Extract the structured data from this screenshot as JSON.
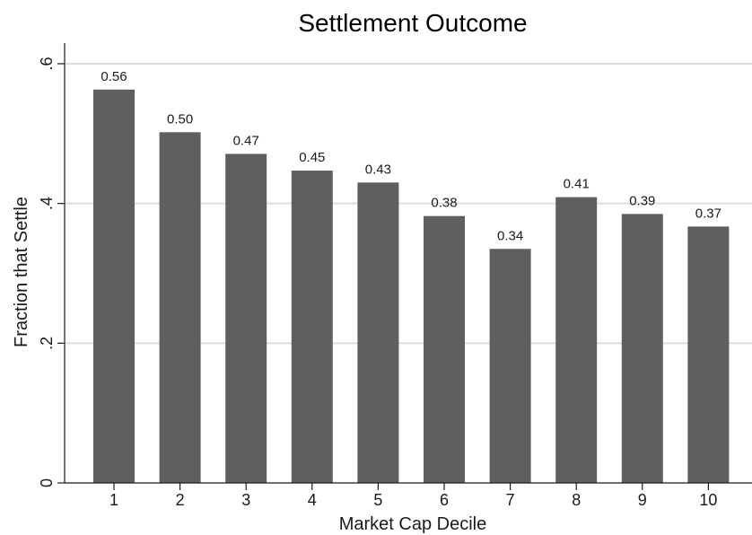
{
  "chart_data": {
    "type": "bar",
    "title": "Settlement Outcome",
    "xlabel": "Market Cap Decile",
    "ylabel": "Fraction that Settle",
    "categories": [
      "1",
      "2",
      "3",
      "4",
      "5",
      "6",
      "7",
      "8",
      "9",
      "10"
    ],
    "values": [
      0.563,
      0.502,
      0.471,
      0.447,
      0.43,
      0.382,
      0.335,
      0.409,
      0.385,
      0.367
    ],
    "data_labels": [
      "0.56",
      "0.50",
      "0.47",
      "0.45",
      "0.43",
      "0.38",
      "0.34",
      "0.41",
      "0.39",
      "0.37"
    ],
    "ylim": [
      0,
      0.6
    ],
    "yticks": [
      0,
      0.2,
      0.4,
      0.6
    ],
    "ytick_labels": [
      "0",
      ".2",
      ".4",
      ".6"
    ],
    "grid": true,
    "legend": "none",
    "bar_color": "#5f5f5f",
    "grid_color": "#dcdcdc"
  }
}
